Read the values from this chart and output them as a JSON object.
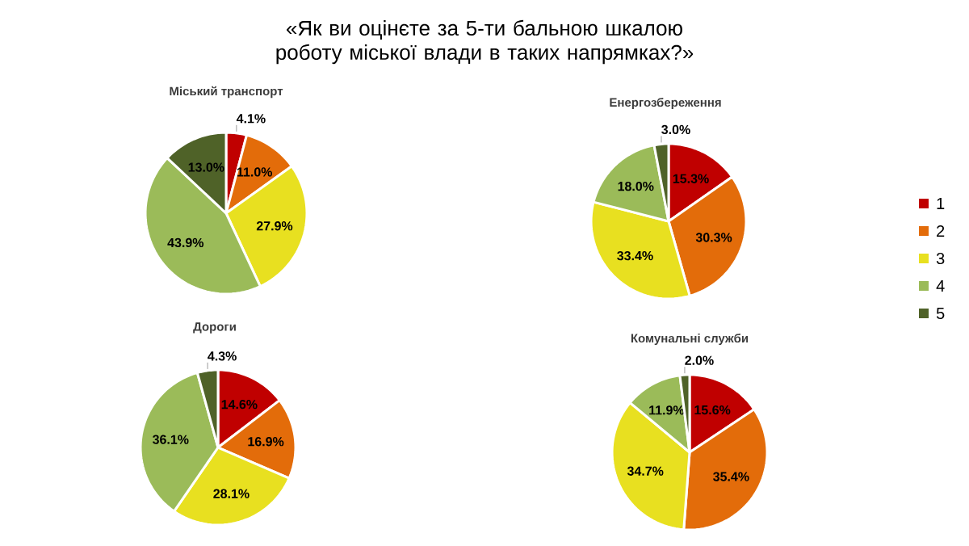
{
  "chart_data": [
    {
      "type": "other",
      "title": "«Як ви оцінєте за 5-ти бальною шкалою роботу міської влади в таких напрямках?»"
    },
    {
      "type": "pie",
      "title": "Міський транспорт",
      "categories": [
        null,
        null,
        null,
        null,
        null
      ],
      "values": [
        4.1,
        11.0,
        27.9,
        43.9,
        13.0
      ],
      "value_labels": [
        "4.1%",
        "11.0%",
        "27.9%",
        "43.9%",
        "13.0%"
      ],
      "colors": [
        "#c00000",
        "#e36c0a",
        "#e8e020",
        "#9bbb59",
        "#4f6228"
      ]
    },
    {
      "type": "pie",
      "title": "Енергозбереження",
      "categories": [
        "1",
        "2",
        "3",
        "4",
        "5"
      ],
      "values": [
        15.3,
        30.3,
        33.4,
        18.0,
        3.0
      ],
      "value_labels": [
        "15.3%",
        "30.3%",
        "33.4%",
        "18.0%",
        "3.0%"
      ],
      "colors": [
        "#c00000",
        "#e36c0a",
        "#e8e020",
        "#9bbb59",
        "#4f6228"
      ],
      "legend": "right"
    },
    {
      "type": "pie",
      "title": "Дороги",
      "categories": [
        null,
        null,
        null,
        null,
        null
      ],
      "values": [
        14.6,
        16.9,
        28.1,
        36.1,
        4.3
      ],
      "value_labels": [
        "14.6%",
        "16.9%",
        "28.1%",
        "36.1%",
        "4.3%"
      ],
      "colors": [
        "#c00000",
        "#e36c0a",
        "#e8e020",
        "#9bbb59",
        "#4f6228"
      ]
    },
    {
      "type": "pie",
      "title": "Комунальні служби",
      "categories": [
        null,
        null,
        null,
        null,
        null
      ],
      "values": [
        15.6,
        35.4,
        34.7,
        11.9,
        2.0
      ],
      "value_labels": [
        "15.6%",
        "35.4%",
        "34.7%",
        "11.9%",
        "2.0%"
      ],
      "colors": [
        "#c00000",
        "#e36c0a",
        "#e8e020",
        "#9bbb59",
        "#4f6228"
      ]
    }
  ]
}
